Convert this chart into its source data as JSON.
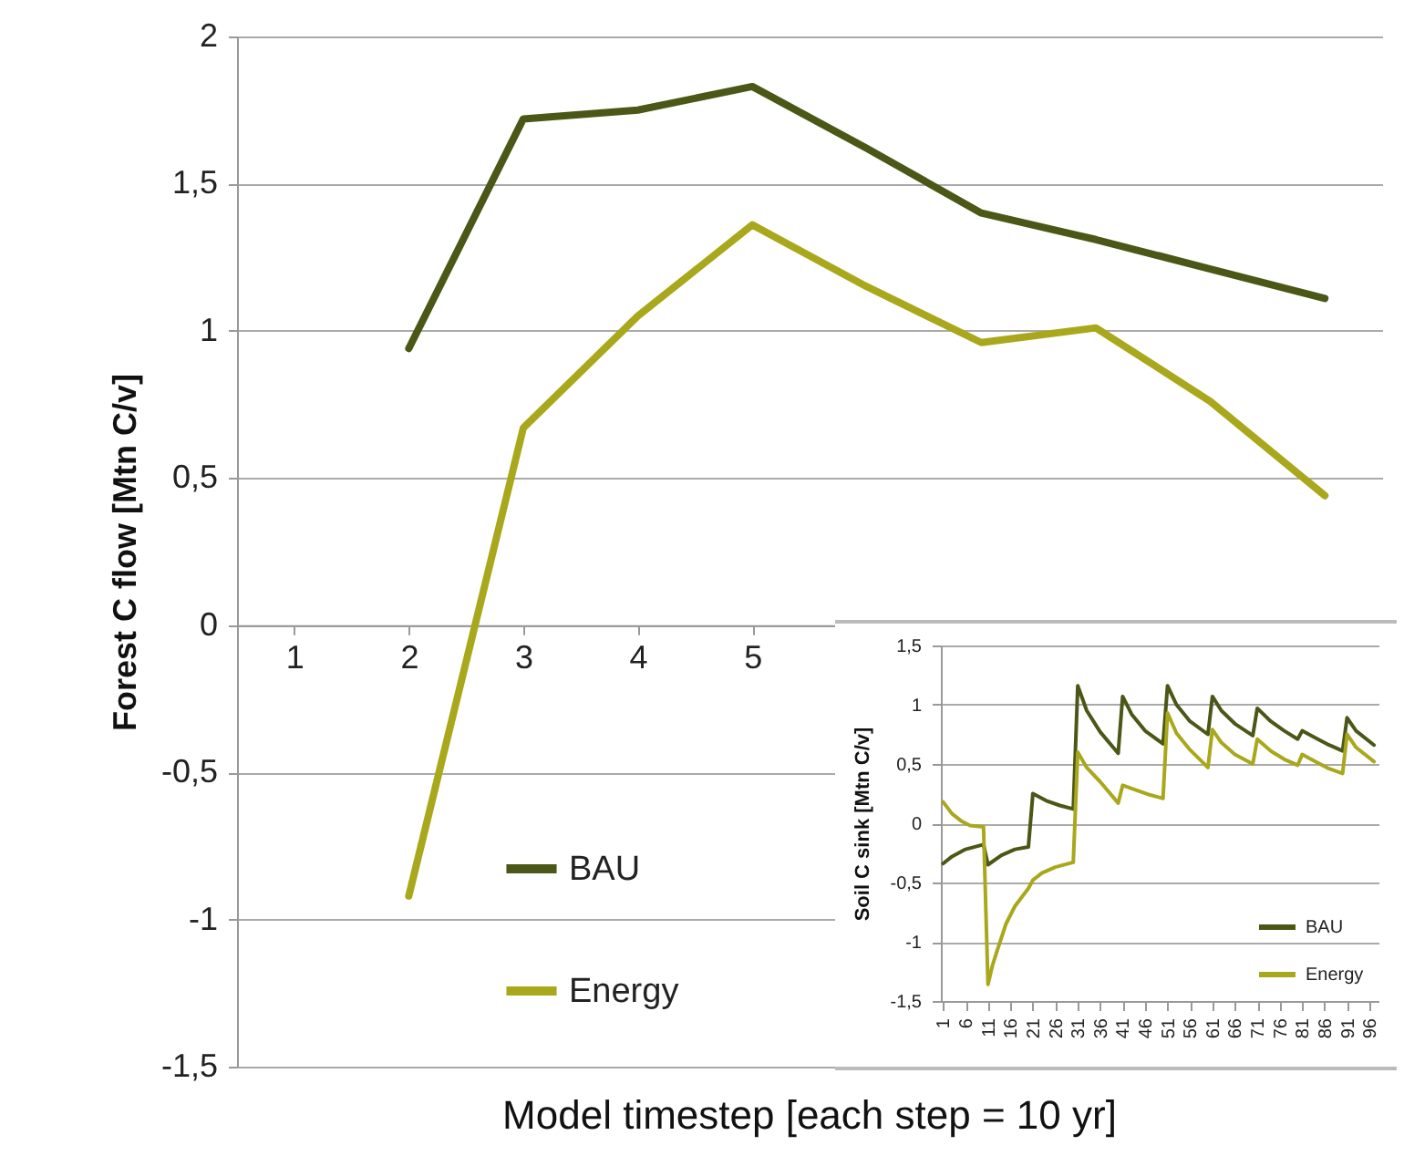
{
  "chart_data": [
    {
      "type": "line",
      "xlabel": "Model timestep [each step = 10 yr]",
      "ylabel": "Forest C flow   [Mtn C/v]",
      "categories": [
        "1",
        "2",
        "3",
        "4",
        "5",
        null,
        null,
        null,
        null,
        null
      ],
      "series": [
        {
          "name": "BAU",
          "color": "#4b5716",
          "values": [
            null,
            0.94,
            1.72,
            1.75,
            1.83,
            1.62,
            1.4,
            1.31,
            1.21,
            1.11
          ]
        },
        {
          "name": "Energy",
          "color": "#a9a81c",
          "values": [
            null,
            -0.92,
            0.67,
            1.05,
            1.36,
            1.15,
            0.96,
            1.01,
            0.76,
            0.44
          ]
        }
      ],
      "ylim": [
        -1.5,
        2
      ],
      "yticks": [
        {
          "value": -1.5,
          "label": "-1,5"
        },
        -1,
        {
          "value": -0.5,
          "label": "-0,5"
        },
        0,
        {
          "value": 0.5,
          "label": "0,5"
        },
        1,
        {
          "value": 1.5,
          "label": "1,5"
        },
        2
      ],
      "grid": "y",
      "legend": "bottom left"
    },
    {
      "type": "line",
      "ylabel": "Soil C sink  [Mtn C/v]",
      "series": [
        {
          "name": "BAU",
          "color": "#4b5716",
          "x": [
            1,
            3,
            6,
            10,
            11,
            14,
            17,
            20,
            21,
            24,
            27,
            30,
            31,
            33,
            36,
            40,
            41,
            43,
            46,
            50,
            51,
            53,
            56,
            60,
            61,
            63,
            66,
            70,
            71,
            74,
            77,
            80,
            81,
            84,
            87,
            90,
            91,
            93,
            97
          ],
          "values": [
            -0.34,
            -0.28,
            -0.22,
            -0.18,
            -0.35,
            -0.27,
            -0.22,
            -0.2,
            0.25,
            0.19,
            0.15,
            0.12,
            1.16,
            0.95,
            0.77,
            0.59,
            1.07,
            0.92,
            0.78,
            0.67,
            1.16,
            1.0,
            0.86,
            0.75,
            1.07,
            0.95,
            0.84,
            0.74,
            0.97,
            0.86,
            0.78,
            0.71,
            0.78,
            0.72,
            0.66,
            0.61,
            0.89,
            0.78,
            0.66
          ]
        },
        {
          "name": "Energy",
          "color": "#a9a81c",
          "x": [
            1,
            3,
            5,
            7,
            10,
            11,
            12,
            13,
            15,
            17,
            19,
            20,
            21,
            23,
            26,
            30,
            31,
            33,
            36,
            40,
            41,
            44,
            47,
            50,
            51,
            53,
            56,
            60,
            61,
            63,
            66,
            70,
            71,
            74,
            77,
            80,
            81,
            84,
            87,
            90,
            91,
            93,
            97
          ],
          "values": [
            0.18,
            0.08,
            0.02,
            -0.02,
            -0.03,
            -1.36,
            -1.2,
            -1.08,
            -0.85,
            -0.7,
            -0.6,
            -0.55,
            -0.48,
            -0.42,
            -0.37,
            -0.33,
            0.6,
            0.47,
            0.35,
            0.17,
            0.32,
            0.28,
            0.24,
            0.21,
            0.93,
            0.76,
            0.62,
            0.47,
            0.79,
            0.68,
            0.58,
            0.5,
            0.71,
            0.61,
            0.54,
            0.49,
            0.58,
            0.52,
            0.46,
            0.42,
            0.75,
            0.64,
            0.52
          ]
        }
      ],
      "xlim": [
        0.5,
        98
      ],
      "xticks": [
        1,
        6,
        11,
        16,
        21,
        26,
        31,
        36,
        41,
        46,
        51,
        56,
        61,
        66,
        71,
        76,
        81,
        86,
        91,
        96
      ],
      "ylim": [
        -1.5,
        1.5
      ],
      "yticks": [
        {
          "value": -1.5,
          "label": "-1,5"
        },
        -1,
        {
          "value": -0.5,
          "label": "-0,5"
        },
        0,
        {
          "value": 0.5,
          "label": "0,5"
        },
        1,
        {
          "value": 1.5,
          "label": "1,5"
        }
      ],
      "grid": "y",
      "legend": "bottom right"
    }
  ]
}
